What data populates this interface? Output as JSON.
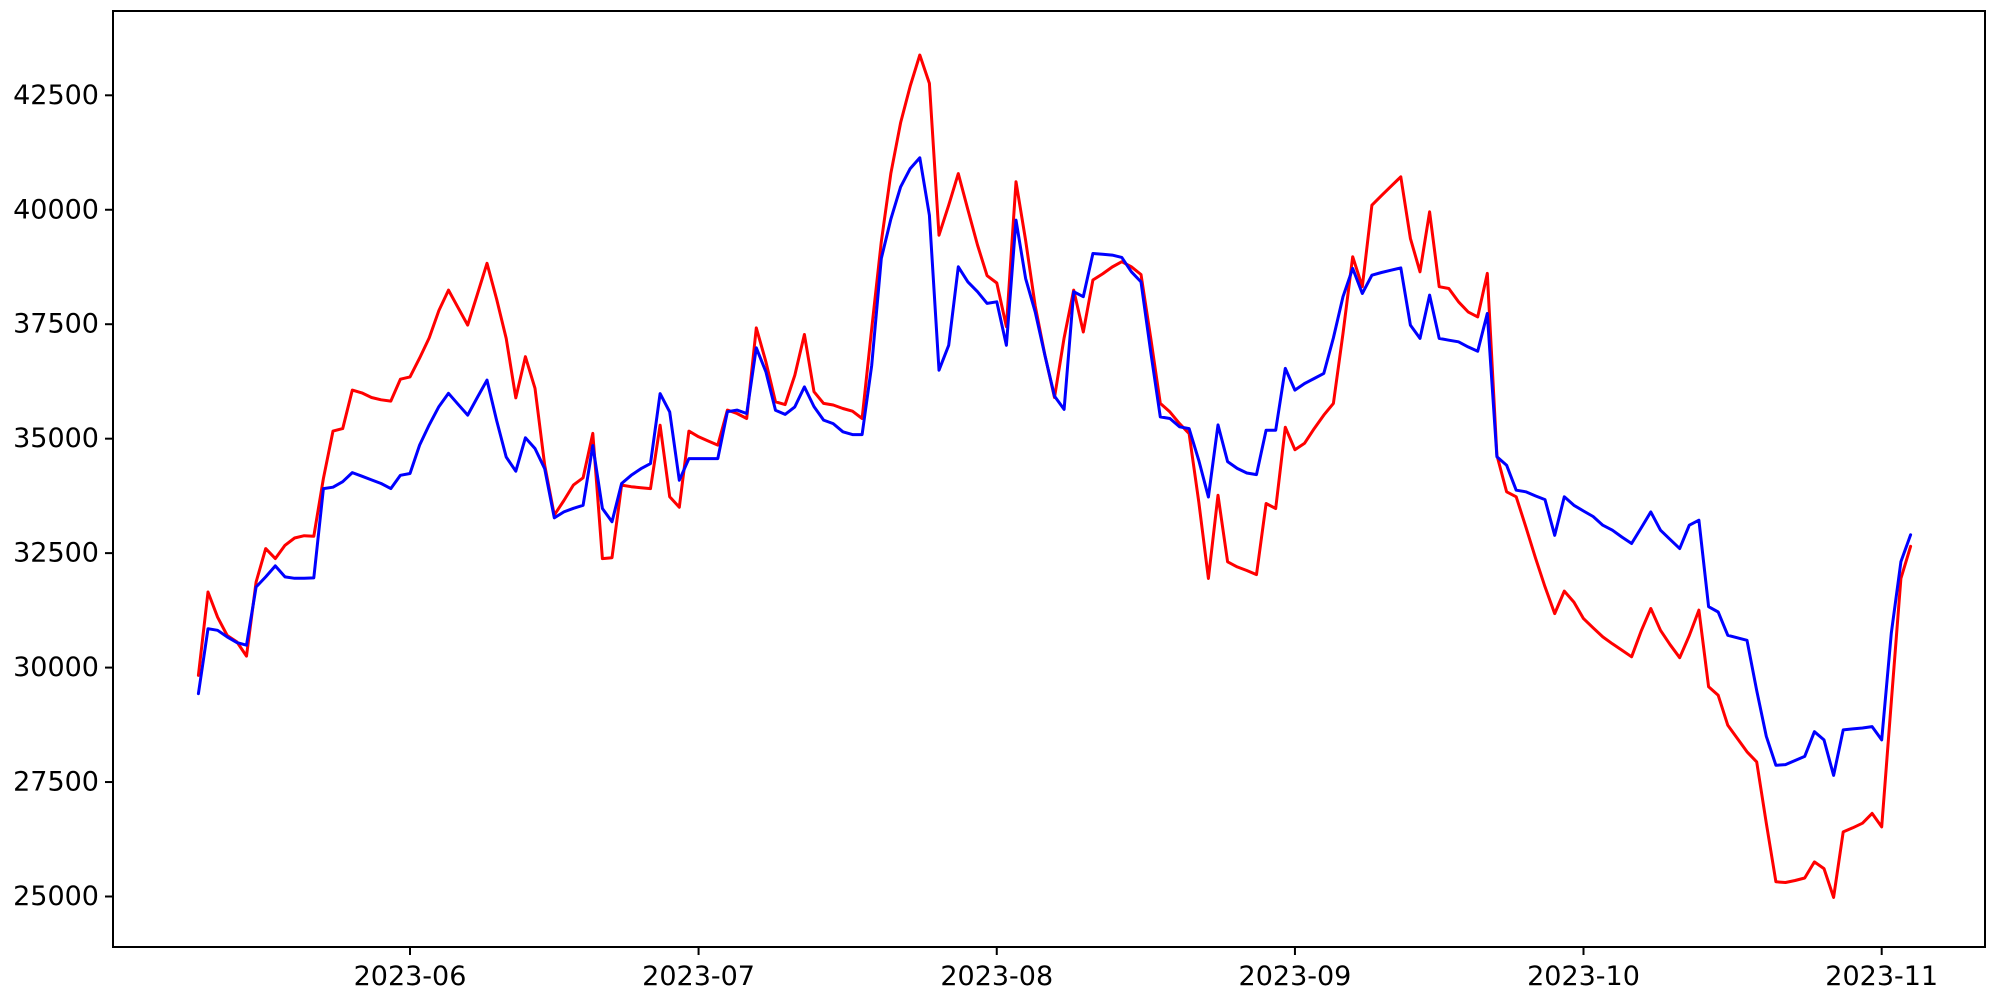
{
  "figure": {
    "background": "#ffffff",
    "border_color": "#000000"
  },
  "chart_data": {
    "type": "line",
    "title": "",
    "xlabel": "",
    "ylabel": "",
    "grid": false,
    "legend": null,
    "x_tick_labels": [
      "2023-06",
      "2023-07",
      "2023-08",
      "2023-09",
      "2023-10",
      "2023-11"
    ],
    "x_tick_dates": [
      "2023-06-01",
      "2023-07-01",
      "2023-08-01",
      "2023-09-01",
      "2023-10-01",
      "2023-11-01"
    ],
    "y_ticks": [
      25000,
      27500,
      30000,
      32500,
      35000,
      37500,
      40000,
      42500
    ],
    "ylim": [
      23930,
      44380
    ],
    "xlim_dates": [
      "2023-05-01",
      "2023-11-13"
    ],
    "dates": [
      "2023-05-10",
      "2023-05-11",
      "2023-05-12",
      "2023-05-13",
      "2023-05-14",
      "2023-05-15",
      "2023-05-16",
      "2023-05-17",
      "2023-05-18",
      "2023-05-19",
      "2023-05-20",
      "2023-05-21",
      "2023-05-22",
      "2023-05-23",
      "2023-05-24",
      "2023-05-25",
      "2023-05-26",
      "2023-05-27",
      "2023-05-28",
      "2023-05-29",
      "2023-05-30",
      "2023-05-31",
      "2023-06-01",
      "2023-06-02",
      "2023-06-03",
      "2023-06-04",
      "2023-06-05",
      "2023-06-06",
      "2023-06-07",
      "2023-06-08",
      "2023-06-09",
      "2023-06-10",
      "2023-06-11",
      "2023-06-12",
      "2023-06-13",
      "2023-06-14",
      "2023-06-15",
      "2023-06-16",
      "2023-06-17",
      "2023-06-18",
      "2023-06-19",
      "2023-06-20",
      "2023-06-21",
      "2023-06-22",
      "2023-06-23",
      "2023-06-24",
      "2023-06-25",
      "2023-06-26",
      "2023-06-27",
      "2023-06-28",
      "2023-06-29",
      "2023-06-30",
      "2023-07-01",
      "2023-07-02",
      "2023-07-03",
      "2023-07-04",
      "2023-07-05",
      "2023-07-06",
      "2023-07-07",
      "2023-07-08",
      "2023-07-09",
      "2023-07-10",
      "2023-07-11",
      "2023-07-12",
      "2023-07-13",
      "2023-07-14",
      "2023-07-15",
      "2023-07-16",
      "2023-07-17",
      "2023-07-18",
      "2023-07-19",
      "2023-07-20",
      "2023-07-21",
      "2023-07-22",
      "2023-07-23",
      "2023-07-24",
      "2023-07-25",
      "2023-07-26",
      "2023-07-27",
      "2023-07-28",
      "2023-07-29",
      "2023-07-30",
      "2023-07-31",
      "2023-08-01",
      "2023-08-02",
      "2023-08-03",
      "2023-08-04",
      "2023-08-05",
      "2023-08-06",
      "2023-08-07",
      "2023-08-08",
      "2023-08-09",
      "2023-08-10",
      "2023-08-11",
      "2023-08-12",
      "2023-08-13",
      "2023-08-14",
      "2023-08-15",
      "2023-08-16",
      "2023-08-17",
      "2023-08-18",
      "2023-08-19",
      "2023-08-20",
      "2023-08-21",
      "2023-08-22",
      "2023-08-23",
      "2023-08-24",
      "2023-08-25",
      "2023-08-26",
      "2023-08-27",
      "2023-08-28",
      "2023-08-29",
      "2023-08-30",
      "2023-08-31",
      "2023-09-01",
      "2023-09-02",
      "2023-09-03",
      "2023-09-04",
      "2023-09-05",
      "2023-09-06",
      "2023-09-07",
      "2023-09-08",
      "2023-09-09",
      "2023-09-10",
      "2023-09-11",
      "2023-09-12",
      "2023-09-13",
      "2023-09-14",
      "2023-09-15",
      "2023-09-16",
      "2023-09-17",
      "2023-09-18",
      "2023-09-19",
      "2023-09-20",
      "2023-09-21",
      "2023-09-22",
      "2023-09-23",
      "2023-09-24",
      "2023-09-25",
      "2023-09-26",
      "2023-09-27",
      "2023-09-28",
      "2023-09-29",
      "2023-09-30",
      "2023-10-01",
      "2023-10-02",
      "2023-10-03",
      "2023-10-04",
      "2023-10-05",
      "2023-10-06",
      "2023-10-07",
      "2023-10-08",
      "2023-10-09",
      "2023-10-10",
      "2023-10-11",
      "2023-10-12",
      "2023-10-13",
      "2023-10-14",
      "2023-10-15",
      "2023-10-16",
      "2023-10-17",
      "2023-10-18",
      "2023-10-19",
      "2023-10-20",
      "2023-10-21",
      "2023-10-22",
      "2023-10-23",
      "2023-10-24",
      "2023-10-25",
      "2023-10-26",
      "2023-10-27",
      "2023-10-28",
      "2023-10-29",
      "2023-10-30",
      "2023-10-31",
      "2023-11-01",
      "2023-11-02",
      "2023-11-03",
      "2023-11-04"
    ],
    "series": [
      {
        "name": "red-series",
        "color": "#ff0000",
        "values": [
          29830,
          31650,
          31100,
          30700,
          30560,
          30250,
          31870,
          32600,
          32380,
          32670,
          32830,
          32880,
          32870,
          34130,
          35165,
          35220,
          36060,
          36000,
          35900,
          35850,
          35820,
          36300,
          36350,
          36760,
          37200,
          37800,
          38245,
          37860,
          37480,
          38150,
          38830,
          38050,
          37190,
          35890,
          36790,
          36100,
          34420,
          33330,
          33650,
          33990,
          34145,
          35115,
          32380,
          32400,
          33985,
          33950,
          33930,
          33910,
          35295,
          33730,
          33500,
          35165,
          35040,
          34950,
          34860,
          35625,
          35550,
          35440,
          37420,
          36680,
          35805,
          35745,
          36385,
          37275,
          36025,
          35770,
          35735,
          35660,
          35600,
          35440,
          37400,
          39300,
          40800,
          41900,
          42700,
          43380,
          42760,
          39445,
          40100,
          40790,
          40000,
          39230,
          38560,
          38400,
          37445,
          40610,
          39335,
          37900,
          36825,
          35900,
          37200,
          38245,
          37330,
          38465,
          38600,
          38750,
          38865,
          38755,
          38585,
          37200,
          35770,
          35585,
          35330,
          35110,
          33615,
          31945,
          33765,
          32310,
          32200,
          32120,
          32030,
          33585,
          33475,
          35250,
          34760,
          34900,
          35220,
          35515,
          35770,
          37300,
          38975,
          38320,
          40100,
          40310,
          40515,
          40720,
          39375,
          38645,
          39955,
          38320,
          38280,
          37990,
          37770,
          37660,
          38610,
          34640,
          33840,
          33730,
          33075,
          32400,
          31765,
          31180,
          31670,
          31430,
          31070,
          30870,
          30670,
          30520,
          30380,
          30235,
          30800,
          31290,
          30815,
          30500,
          30215,
          30700,
          31255,
          29580,
          29395,
          28740,
          28450,
          28160,
          27940,
          26600,
          25320,
          25305,
          25350,
          25405,
          25755,
          25610,
          24980,
          26410,
          26500,
          26600,
          26815,
          26520,
          29250,
          31945,
          32650
        ]
      },
      {
        "name": "blue-series",
        "color": "#0000ff",
        "values": [
          29430,
          30850,
          30815,
          30670,
          30545,
          30490,
          31760,
          31980,
          32220,
          31980,
          31950,
          31950,
          31960,
          33910,
          33940,
          34060,
          34260,
          34180,
          34100,
          34020,
          33910,
          34200,
          34240,
          34860,
          35300,
          35700,
          35990,
          35750,
          35515,
          35900,
          36280,
          35400,
          34600,
          34290,
          35020,
          34785,
          34345,
          33270,
          33400,
          33480,
          33545,
          34850,
          33475,
          33185,
          34020,
          34200,
          34345,
          34455,
          35985,
          35585,
          34090,
          34565,
          34565,
          34565,
          34565,
          35590,
          35625,
          35550,
          36985,
          36460,
          35620,
          35530,
          35695,
          36130,
          35700,
          35405,
          35330,
          35150,
          35090,
          35090,
          36600,
          38935,
          39800,
          40500,
          40900,
          41135,
          39880,
          36495,
          37040,
          38755,
          38425,
          38210,
          37955,
          37990,
          37040,
          39775,
          38500,
          37770,
          36820,
          35930,
          35640,
          38210,
          38100,
          39045,
          39030,
          39010,
          38960,
          38645,
          38425,
          36900,
          35475,
          35440,
          35260,
          35220,
          34525,
          33725,
          35300,
          34500,
          34350,
          34250,
          34215,
          35185,
          35185,
          36535,
          36060,
          36205,
          36315,
          36425,
          37200,
          38100,
          38720,
          38170,
          38570,
          38630,
          38680,
          38730,
          37480,
          37190,
          38135,
          37190,
          37150,
          37115,
          37005,
          36910,
          37735,
          34605,
          34420,
          33875,
          33840,
          33750,
          33670,
          32890,
          33730,
          33545,
          33420,
          33300,
          33110,
          33000,
          32850,
          32710,
          33050,
          33400,
          33000,
          32800,
          32600,
          33110,
          33220,
          31330,
          31215,
          30705,
          30650,
          30595,
          29500,
          28500,
          27865,
          27880,
          27970,
          28060,
          28600,
          28420,
          27645,
          28640,
          28660,
          28680,
          28710,
          28420,
          30750,
          32310,
          32900
        ]
      }
    ]
  }
}
